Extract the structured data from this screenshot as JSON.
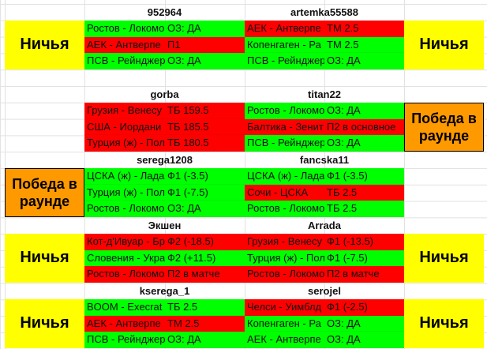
{
  "colors": {
    "win": "#00ff00",
    "loss": "#ff0000",
    "draw": "#ffff00",
    "round_win": "#ff9900"
  },
  "blocks": [
    {
      "left": {
        "player": "952964",
        "result": "Ничья",
        "result_type": "draw",
        "bets": [
          {
            "match": "Ростов - Локомо",
            "bet": "ОЗ: ДА",
            "status": "win"
          },
          {
            "match": "АЕК - Антверпе",
            "bet": "П1",
            "status": "loss"
          },
          {
            "match": "ПСВ - Рейнджер",
            "bet": "ОЗ: ДА",
            "status": "win"
          }
        ]
      },
      "right": {
        "player": "artemka55588",
        "result": "Ничья",
        "result_type": "draw",
        "bets": [
          {
            "match": "АЕК - Антверпе",
            "bet": "ТМ 2.5",
            "status": "loss"
          },
          {
            "match": "Копенгаген - Ра",
            "bet": "ТМ 2.5",
            "status": "win"
          },
          {
            "match": "ПСВ - Рейнджер",
            "bet": "ОЗ: ДА",
            "status": "win"
          }
        ]
      }
    },
    {
      "left": {
        "player": "gorba",
        "result": "",
        "result_type": "none",
        "bets": [
          {
            "match": "Грузия - Венесу",
            "bet": "ТБ 159.5",
            "status": "loss"
          },
          {
            "match": "США - Иордани",
            "bet": "ТБ 185.5",
            "status": "loss"
          },
          {
            "match": "Турция (ж) - Пол",
            "bet": "ТБ 180.5",
            "status": "loss"
          }
        ]
      },
      "right": {
        "player": "titan22",
        "result": "Победа в раунде",
        "result_type": "round",
        "bets": [
          {
            "match": "Ростов - Локомо",
            "bet": "ОЗ: ДА",
            "status": "win"
          },
          {
            "match": "Балтика - Зенит",
            "bet": "П2 в основное",
            "status": "loss"
          },
          {
            "match": "ПСВ - Рейнджер",
            "bet": "ОЗ: ДА",
            "status": "win"
          }
        ]
      }
    },
    {
      "left": {
        "player": "serega1208",
        "result": "Победа в раунде",
        "result_type": "round",
        "bets": [
          {
            "match": "ЦСКА (ж) - Лада",
            "bet": "Ф1 (-3.5)",
            "status": "win"
          },
          {
            "match": "Турция (ж) - Пол",
            "bet": "Ф1 (-7.5)",
            "status": "win"
          },
          {
            "match": "Ростов - Локомо",
            "bet": "ОЗ: ДА",
            "status": "win"
          }
        ]
      },
      "right": {
        "player": "fancska11",
        "result": "",
        "result_type": "none",
        "bets": [
          {
            "match": "ЦСКА (ж) - Лада",
            "bet": "Ф1 (-3.5)",
            "status": "win"
          },
          {
            "match": "Сочи - ЦСКА",
            "bet": "ТБ 2.5",
            "status": "loss"
          },
          {
            "match": "Ростов - Локомо",
            "bet": "ТБ 2.5",
            "status": "win"
          }
        ]
      }
    },
    {
      "left": {
        "player": "Экшен",
        "result": "Ничья",
        "result_type": "draw",
        "bets": [
          {
            "match": "Кот-д'Ивуар - Бр",
            "bet": "Ф2 (-18.5)",
            "status": "loss"
          },
          {
            "match": "Словения - Укра",
            "bet": "Ф2 (+11.5)",
            "status": "win"
          },
          {
            "match": "Ростов - Локомо",
            "bet": "П2 в матче",
            "status": "loss"
          }
        ]
      },
      "right": {
        "player": "Arrada",
        "result": "Ничья",
        "result_type": "draw",
        "bets": [
          {
            "match": "Грузия - Венесу",
            "bet": "Ф1 (-13.5)",
            "status": "loss"
          },
          {
            "match": "Турция (ж) - Пол",
            "bet": "Ф1 (-7.5)",
            "status": "win"
          },
          {
            "match": "Ростов - Локомо",
            "bet": "П2 в матче",
            "status": "loss"
          }
        ]
      }
    },
    {
      "left": {
        "player": "kserega_1",
        "result": "Ничья",
        "result_type": "draw",
        "bets": [
          {
            "match": "BOOM - Execrat",
            "bet": "ТБ 2.5",
            "status": "win"
          },
          {
            "match": "АЕК - Антверпе",
            "bet": "ТМ 2.5",
            "status": "loss"
          },
          {
            "match": "ПСВ - Рейнджер",
            "bet": "ОЗ: ДА",
            "status": "win"
          }
        ]
      },
      "right": {
        "player": "serojel",
        "result": "Ничья",
        "result_type": "draw",
        "bets": [
          {
            "match": "Челси - Уимблд",
            "bet": "Ф1 (-2.5)",
            "status": "loss"
          },
          {
            "match": "Копенгаген - Ра",
            "bet": "ОЗ: ДА",
            "status": "win"
          },
          {
            "match": "АЕК - Антверпе",
            "bet": "ОЗ: ДА",
            "status": "win"
          }
        ]
      }
    }
  ]
}
